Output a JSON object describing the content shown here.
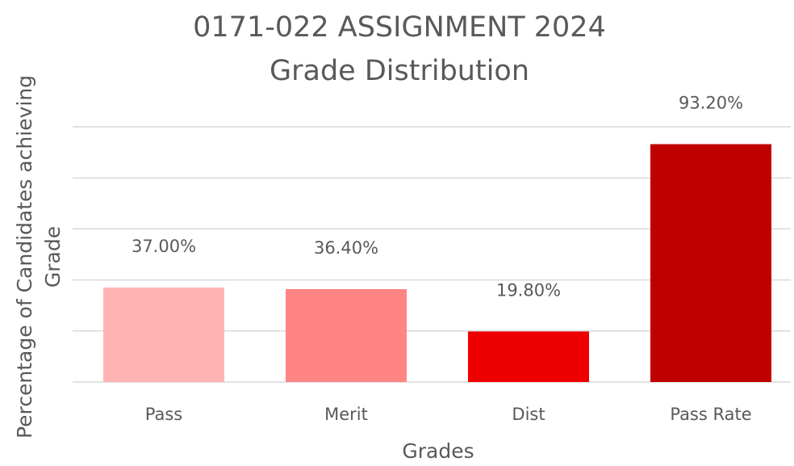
{
  "chart_data": {
    "type": "bar",
    "title": "0171-022 ASSIGNMENT 2024",
    "subtitle": "Grade Distribution",
    "xlabel": "Grades",
    "ylabel": [
      "Percentage of Candidates achieving",
      "Grade"
    ],
    "categories": [
      "Pass",
      "Merit",
      "Dist",
      "Pass Rate"
    ],
    "values": [
      37,
      36.4,
      19.8,
      93.2
    ],
    "value_labels": [
      "37.00%",
      "36.40%",
      "19.80%",
      "93.20%"
    ],
    "colors": [
      "#ffb3b3",
      "#ff8585",
      "#ee0000",
      "#c00000"
    ],
    "ylim": [
      0,
      100
    ],
    "yticks": [
      0,
      20,
      40,
      60,
      80,
      100
    ],
    "grid": true
  }
}
